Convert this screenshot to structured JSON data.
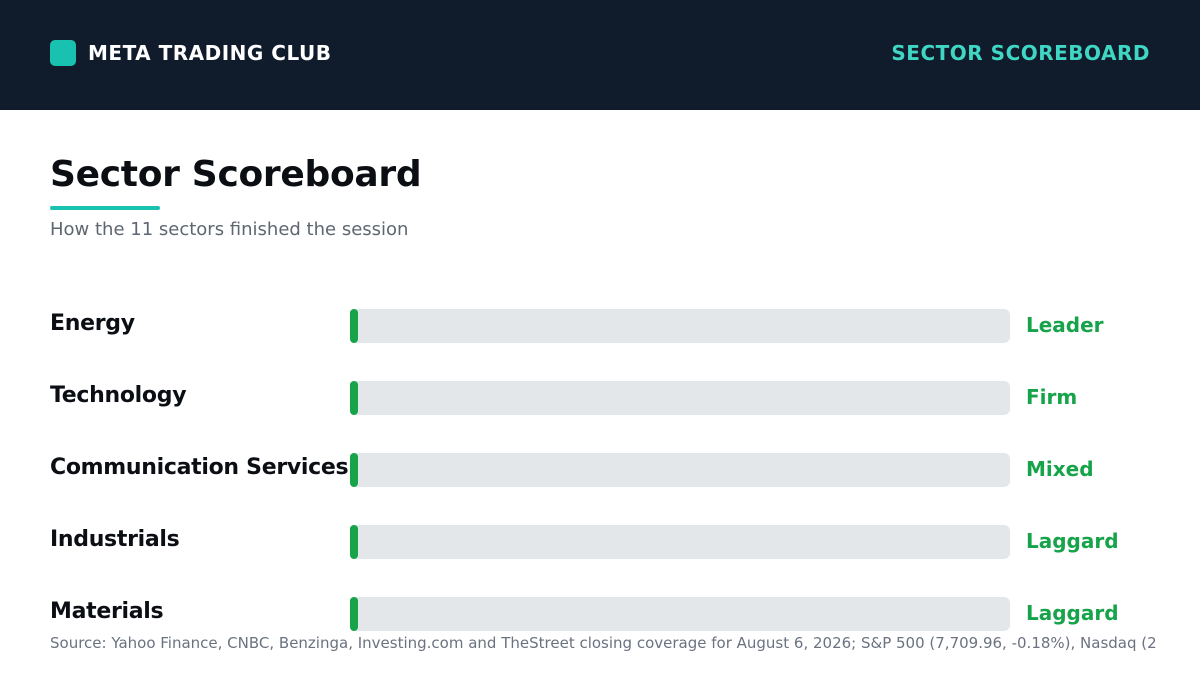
{
  "header": {
    "brand": "META TRADING CLUB",
    "section": "SECTOR SCOREBOARD",
    "brand_color": "#19c2b0",
    "background": "#101b2b"
  },
  "page": {
    "title": "Sector Scoreboard",
    "subtitle": "How the 11 sectors finished the session",
    "source": "Source: Yahoo Finance, CNBC, Benzinga, Investing.com and TheStreet closing coverage for August 6, 2026; S&P 500 (7,709.96, -0.18%), Nasdaq (2"
  },
  "chart_data": {
    "type": "bar",
    "orientation": "horizontal",
    "categories": [
      "Energy",
      "Technology",
      "Communication Services",
      "Industrials",
      "Materials"
    ],
    "values": [
      0.01,
      0.01,
      0.01,
      0.01,
      0.01
    ],
    "status_labels": [
      "Leader",
      "Firm",
      "Mixed",
      "Laggard",
      "Laggard"
    ],
    "bar_color": "#16a34a",
    "track_color": "#e3e7ea",
    "status_color": "#16a34a"
  }
}
